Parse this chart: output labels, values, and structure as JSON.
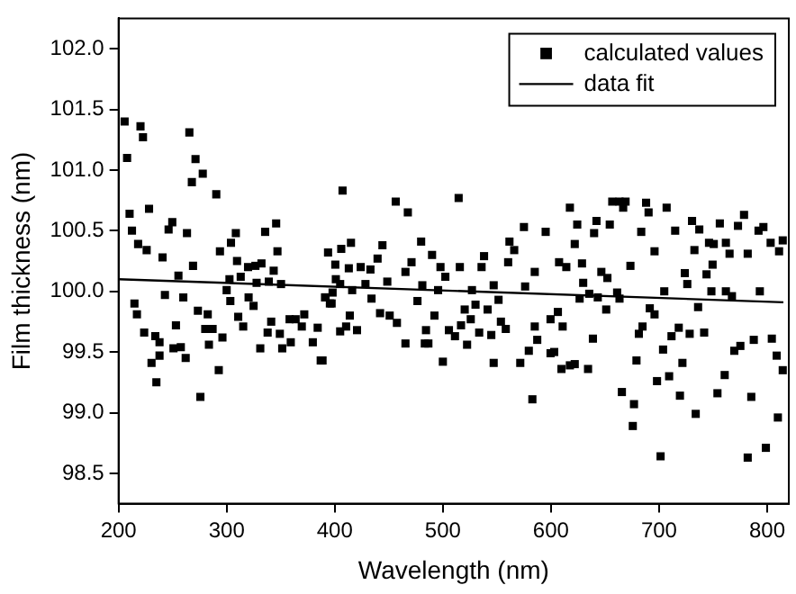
{
  "chart_data": {
    "type": "scatter",
    "xlabel": "Wavelength (nm)",
    "ylabel": "Film thickness (nm)",
    "xlim": [
      200,
      820
    ],
    "xticks": [
      200,
      300,
      400,
      500,
      600,
      700,
      800
    ],
    "ylim": [
      98.25,
      102.25
    ],
    "yticks": [
      98.5,
      {
        "value": 99,
        "label": "99.0"
      },
      99.5,
      {
        "value": 100,
        "label": "100.0"
      },
      100.5,
      {
        "value": 101,
        "label": "101.0"
      },
      101.5,
      {
        "value": 102,
        "label": "102.0"
      }
    ],
    "grid": false,
    "legend": "top right",
    "series": [
      {
        "name": "calculated values",
        "marker": "square",
        "color": "#000000",
        "x": [
          205.6,
          207.9,
          220.3,
          222.6,
          265.5,
          271.2,
          277.9,
          267.8,
          290.4,
          210.2,
          212.4,
          228.2,
          218.1,
          226,
          240.7,
          249.7,
          246.3,
          263.3,
          268.9,
          255.4,
          293.8,
          304,
          308.5,
          335.6,
          345.8,
          347,
          309.6,
          319.8,
          326.6,
          332.2,
          343.5,
          313,
          302.6,
          327.7,
          339,
          350.3,
          406,
          415,
          413,
          401,
          398,
          300,
          303.4,
          320.3,
          324.9,
          391,
          395.5,
          214.7,
          217,
          242.9,
          259.9,
          273.4,
          282.5,
          223.7,
          234,
          237.9,
          230.5,
          237.9,
          235,
          253.1,
          250.8,
          257.6,
          262.1,
          280.2,
          287,
          283.6,
          296.1,
          292.7,
          275.7,
          310.7,
          315.3,
          331.1,
          337.9,
          341.2,
          349.2,
          351.4,
          359.3,
          358.2,
          363.8,
          371.8,
          369.5,
          384.2,
          379.7,
          388.7,
          407.2,
          456.4,
          467.6,
          514.6,
          575,
          595.1,
          393.8,
          400.5,
          444.1,
          439.6,
          424,
          433,
          448.6,
          479.9,
          490,
          471,
          465.4,
          497.8,
          502.3,
          515.7,
          538.1,
          535.8,
          561.6,
          566,
          560.4,
          585,
          405,
          416.1,
          428.4,
          481,
          495.6,
          526.9,
          547,
          576.1,
          391.5,
          397.1,
          413.9,
          434,
          441.9,
          450.8,
          457.5,
          476.5,
          492.2,
          520.2,
          530.2,
          551.5,
          525.8,
          541.4,
          553.7,
          558.2,
          585,
          599.6,
          405,
          410.5,
          420.6,
          484.4,
          486.6,
          505.6,
          511.2,
          516.8,
          522.4,
          533.6,
          544.8,
          465.4,
          483.3,
          587.3,
          387,
          500,
          547,
          571.6,
          579.5,
          582.8,
          599.6,
          617.5,
          624.3,
          642.1,
          654.4,
          656.7,
          663.4,
          669,
          666.8,
          688,
          690.3,
          707,
          683.5,
          714.9,
          730.5,
          737.2,
          756.2,
          773,
          778.6,
          792,
          796.5,
          803.2,
          814.4,
          811,
          639.9,
          622,
          746.2,
          750.6,
          761.8,
          765.2,
          782,
          695.8,
          732.7,
          607.5,
          614.2,
          628.7,
          646.6,
          652.2,
          673.5,
          629.8,
          723.8,
          726.1,
          743.9,
          749.5,
          626.5,
          635.4,
          643.3,
          661.2,
          663.4,
          651.1,
          704.8,
          748.4,
          761.8,
          767.4,
          793.2,
          691.4,
          695.8,
          736.1,
          606.4,
          610.8,
          684.7,
          681.3,
          711.5,
          718.2,
          728.3,
          741.7,
          603,
          609.7,
          617.5,
          622,
          634.3,
          638.8,
          703.7,
          679.1,
          721.6,
          698.1,
          709.3,
          760.7,
          769.6,
          775.2,
          787.6,
          804.3,
          808.8,
          814.4,
          665.6,
          676.8,
          675.7,
          719.3,
          754,
          785.3,
          733.9,
          809.9,
          701.4,
          782,
          798.8
        ],
        "values": [
          101.4,
          101.1,
          101.36,
          101.27,
          101.31,
          101.09,
          100.97,
          100.9,
          100.8,
          100.64,
          100.5,
          100.68,
          100.39,
          100.34,
          100.28,
          100.57,
          100.51,
          100.48,
          100.21,
          100.13,
          100.33,
          100.4,
          100.48,
          100.49,
          100.56,
          100.33,
          100.25,
          100.2,
          100.21,
          100.23,
          100.17,
          100.12,
          100.1,
          100.07,
          100.08,
          100.06,
          100.35,
          100.4,
          100.19,
          100.1,
          99.99,
          100.01,
          99.92,
          99.95,
          99.88,
          99.95,
          99.9,
          99.9,
          99.81,
          99.97,
          99.95,
          99.84,
          99.81,
          99.66,
          99.63,
          99.58,
          99.41,
          99.47,
          99.25,
          99.72,
          99.53,
          99.54,
          99.45,
          99.69,
          99.69,
          99.56,
          99.62,
          99.35,
          99.13,
          99.79,
          99.71,
          99.53,
          99.66,
          99.75,
          99.65,
          99.53,
          99.58,
          99.77,
          99.77,
          99.81,
          99.71,
          99.7,
          99.58,
          99.43,
          100.83,
          100.74,
          100.65,
          100.77,
          100.53,
          100.49,
          100.32,
          100.22,
          100.38,
          100.27,
          100.2,
          100.18,
          100.08,
          100.41,
          100.3,
          100.24,
          100.16,
          100.2,
          100.12,
          100.2,
          100.29,
          100.2,
          100.41,
          100.34,
          100.24,
          100.16,
          100.06,
          100.01,
          100.06,
          100.05,
          100.01,
          100.01,
          100.05,
          100.04,
          99.95,
          99.9,
          99.8,
          99.94,
          99.82,
          99.8,
          99.74,
          99.92,
          99.8,
          99.85,
          99.89,
          99.93,
          99.77,
          99.85,
          99.75,
          99.69,
          99.71,
          99.77,
          99.67,
          99.71,
          99.68,
          99.68,
          99.57,
          99.68,
          99.63,
          99.72,
          99.56,
          99.66,
          99.64,
          99.57,
          99.57,
          99.6,
          99.43,
          99.42,
          99.41,
          99.41,
          99.51,
          99.11,
          99.49,
          100.69,
          100.55,
          100.58,
          100.55,
          100.74,
          100.74,
          100.74,
          100.69,
          100.73,
          100.65,
          100.69,
          100.49,
          100.5,
          100.58,
          100.51,
          100.56,
          100.54,
          100.63,
          100.5,
          100.53,
          100.4,
          100.42,
          100.33,
          100.48,
          100.39,
          100.4,
          100.39,
          100.4,
          100.31,
          100.31,
          100.33,
          100.34,
          100.24,
          100.2,
          100.23,
          100.16,
          100.11,
          100.21,
          100.07,
          100.15,
          100.06,
          100.14,
          100.22,
          99.94,
          99.98,
          99.95,
          99.99,
          99.94,
          99.85,
          100,
          100,
          100,
          99.96,
          100,
          99.86,
          99.81,
          99.87,
          99.83,
          99.71,
          99.71,
          99.65,
          99.63,
          99.7,
          99.65,
          99.66,
          99.5,
          99.36,
          99.39,
          99.4,
          99.36,
          99.61,
          99.52,
          99.43,
          99.41,
          99.26,
          99.3,
          99.31,
          99.51,
          99.55,
          99.6,
          99.61,
          99.47,
          99.35,
          99.17,
          99.07,
          98.89,
          99.14,
          99.16,
          99.13,
          98.99,
          98.96,
          98.64,
          98.63,
          98.71
        ]
      },
      {
        "name": "data fit",
        "type": "line",
        "marker": "none",
        "line_style": "solid",
        "color": "#000000",
        "x": [
          200,
          815
        ],
        "values": [
          100.1,
          99.91
        ]
      }
    ]
  }
}
